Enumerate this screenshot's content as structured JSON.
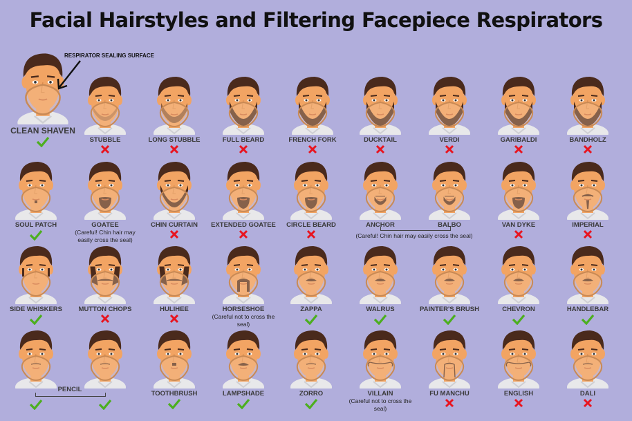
{
  "title": "Facial Hairstyles and Filtering Facepiece Respirators",
  "annotation": "RESPIRATOR SEALING SURFACE",
  "colors": {
    "background": "#b1aedc",
    "ok": "#4caf1e",
    "bad": "#e8141f",
    "hair": "#4a2a1c",
    "skin": "#f2a463",
    "seal": "#c98a55"
  },
  "featured": {
    "label": "CLEAN SHAVEN",
    "status": "ok"
  },
  "rows": [
    [
      {
        "label": "STUBBLE",
        "status": "bad",
        "beard": "stubble"
      },
      {
        "label": "LONG STUBBLE",
        "status": "bad",
        "beard": "longstubble"
      },
      {
        "label": "FULL BEARD",
        "status": "bad",
        "beard": "full"
      },
      {
        "label": "FRENCH FORK",
        "status": "bad",
        "beard": "full"
      },
      {
        "label": "DUCKTAIL",
        "status": "bad",
        "beard": "full"
      },
      {
        "label": "VERDI",
        "status": "bad",
        "beard": "full"
      },
      {
        "label": "GARIBALDI",
        "status": "bad",
        "beard": "full"
      },
      {
        "label": "BANDHOLZ",
        "status": "bad",
        "beard": "full"
      }
    ],
    [
      {
        "label": "SOUL PATCH",
        "status": "ok",
        "beard": "soul"
      },
      {
        "label": "GOATEE",
        "status": "note",
        "note": "(Careful! Chin hair may\neasily cross the seal)",
        "beard": "goatee"
      },
      {
        "label": "CHIN CURTAIN",
        "status": "bad",
        "beard": "curtain"
      },
      {
        "label": "EXTENDED GOATEE",
        "status": "bad",
        "beard": "goatee"
      },
      {
        "label": "CIRCLE BEARD",
        "status": "bad",
        "beard": "goatee"
      },
      {
        "label": "ANCHOR",
        "status": "none",
        "beard": "anchor"
      },
      {
        "label": "BALBO",
        "status": "none",
        "beard": "anchor"
      },
      {
        "label": "VAN DYKE",
        "status": "bad",
        "beard": "goatee"
      },
      {
        "label": "IMPERIAL",
        "status": "bad",
        "beard": "imperial"
      }
    ],
    [
      {
        "label": "SIDE WHISKERS",
        "status": "ok",
        "beard": "side"
      },
      {
        "label": "MUTTON CHOPS",
        "status": "bad",
        "beard": "mutton"
      },
      {
        "label": "HULIHEE",
        "status": "bad",
        "beard": "mutton"
      },
      {
        "label": "HORSESHOE",
        "status": "note",
        "note": "(Careful not to cross the seal)",
        "beard": "horseshoe"
      },
      {
        "label": "ZAPPA",
        "status": "ok",
        "beard": "mustache"
      },
      {
        "label": "WALRUS",
        "status": "ok",
        "beard": "mustache"
      },
      {
        "label": "PAINTER'S BRUSH",
        "status": "ok",
        "beard": "mustache"
      },
      {
        "label": "CHEVRON",
        "status": "ok",
        "beard": "mustache"
      },
      {
        "label": "HANDLEBAR",
        "status": "ok",
        "beard": "mustache"
      }
    ],
    [
      {
        "label": "",
        "status": "ok",
        "beard": "pencil"
      },
      {
        "label": "",
        "status": "ok",
        "beard": "pencil"
      },
      {
        "label": "TOOTHBRUSH",
        "status": "ok",
        "beard": "toothbrush"
      },
      {
        "label": "LAMPSHADE",
        "status": "ok",
        "beard": "mustache"
      },
      {
        "label": "ZORRO",
        "status": "ok",
        "beard": "pencil"
      },
      {
        "label": "VILLAIN",
        "status": "note",
        "note": "(Careful not to cross the seal)",
        "beard": "villain"
      },
      {
        "label": "FU MANCHU",
        "status": "bad",
        "beard": "fumanchu"
      },
      {
        "label": "ENGLISH",
        "status": "bad",
        "beard": "villain"
      },
      {
        "label": "DALI",
        "status": "bad",
        "beard": "pencil"
      }
    ]
  ],
  "groups": {
    "anchor_balbo_note": "(Careful! Chin hair may easily cross the seal)",
    "pencil_label": "PENCIL"
  }
}
